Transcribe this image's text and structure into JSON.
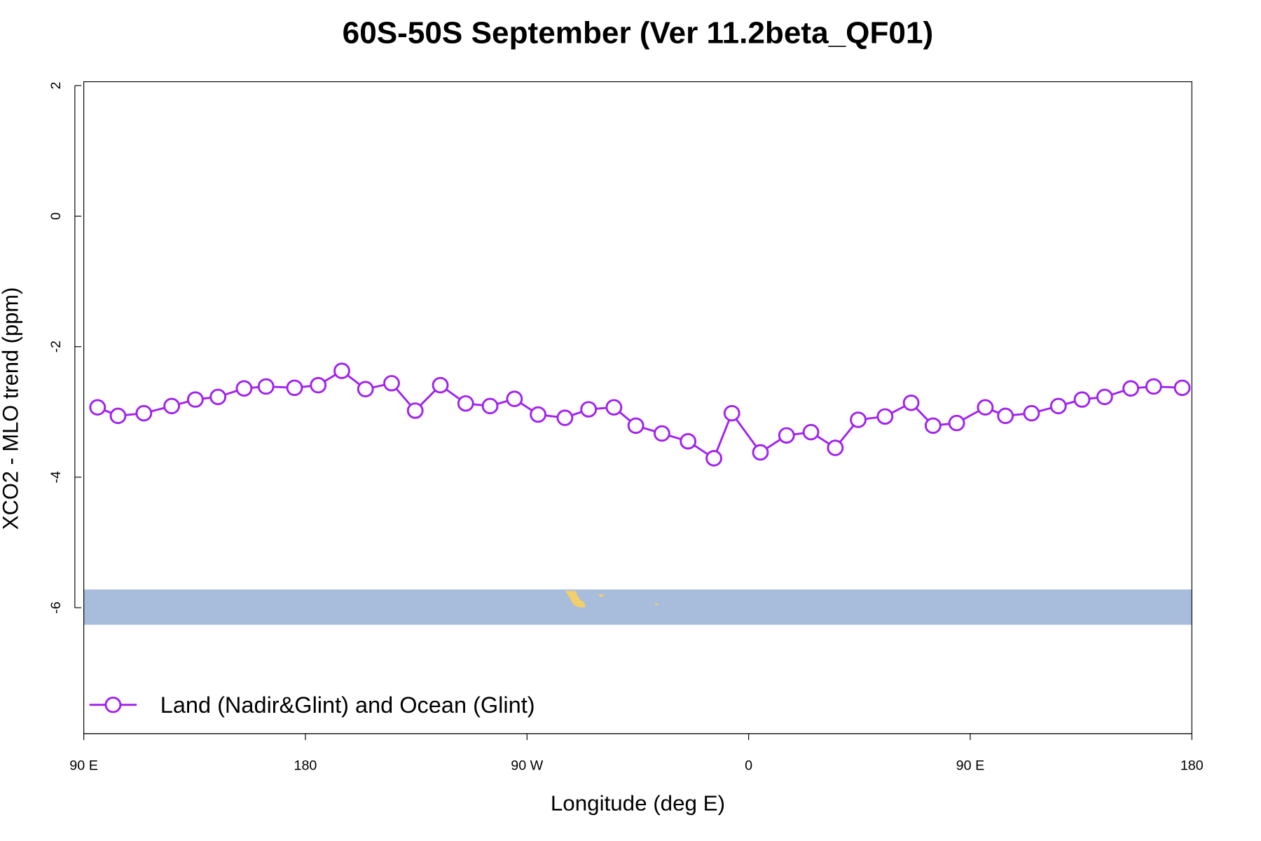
{
  "chart_data": {
    "type": "line",
    "title": "60S-50S September (Ver 11.2beta_QF01)",
    "x_label": "Longitude (deg E)",
    "y_label": "XCO2 - MLO trend (ppm)",
    "xlim": [
      90,
      540
    ],
    "ylim": [
      -7.93,
      2.06
    ],
    "xticks": [
      {
        "value": 90,
        "label": "90 E"
      },
      180,
      {
        "value": 270,
        "label": "90 W"
      },
      {
        "value": 360,
        "label": "0"
      },
      {
        "value": 450,
        "label": "90 E"
      },
      {
        "value": 540,
        "label": "180"
      }
    ],
    "yticks": [
      -6,
      -4,
      -2,
      0,
      2
    ],
    "legend": "bottomleft",
    "series": [
      {
        "name": "Land (Nadir&Glint) and Ocean (Glint)",
        "color": "#a020f0",
        "x": [
          95.6,
          103.9,
          114.4,
          125.7,
          135.3,
          144.5,
          155.1,
          164.0,
          175.6,
          185.2,
          194.8,
          204.4,
          215.0,
          224.6,
          234.8,
          245.1,
          255.0,
          264.9,
          274.5,
          285.4,
          295.0,
          305.3,
          314.2,
          324.8,
          335.4,
          345.9,
          353.2,
          364.8,
          375.4,
          385.3,
          395.2,
          404.5,
          415.4,
          426.0,
          434.9,
          444.5,
          456.1,
          464.3,
          474.9,
          485.8,
          495.4,
          504.6,
          515.2,
          524.5,
          536.1
        ],
        "values": [
          -2.93,
          -3.06,
          -3.02,
          -2.91,
          -2.81,
          -2.77,
          -2.64,
          -2.61,
          -2.63,
          -2.59,
          -2.37,
          -2.65,
          -2.56,
          -2.98,
          -2.59,
          -2.87,
          -2.91,
          -2.8,
          -3.04,
          -3.09,
          -2.96,
          -2.93,
          -3.21,
          -3.33,
          -3.45,
          -3.71,
          -3.02,
          -3.62,
          -3.36,
          -3.31,
          -3.55,
          -3.12,
          -3.07,
          -2.86,
          -3.21,
          -3.17,
          -2.93,
          -3.06,
          -3.02,
          -2.91,
          -2.81,
          -2.77,
          -2.64,
          -2.61,
          -2.63
        ]
      }
    ]
  }
}
